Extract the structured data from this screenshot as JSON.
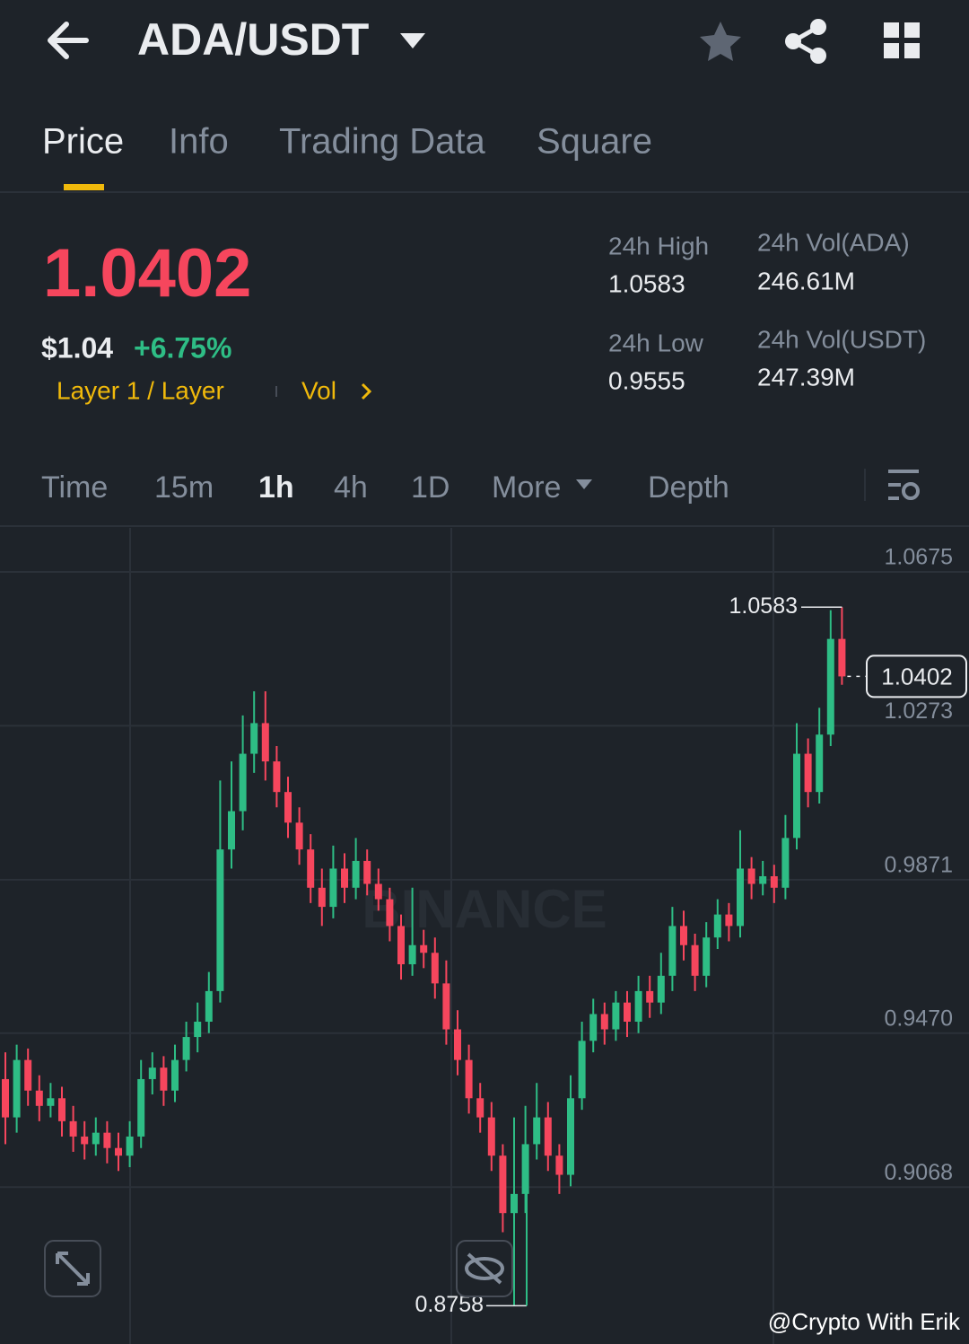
{
  "header": {
    "pair": "ADA/USDT"
  },
  "tabs": [
    "Price",
    "Info",
    "Trading Data",
    "Square"
  ],
  "ticker": {
    "price": "1.0402",
    "usd": "$1.04",
    "change": "+6.75%",
    "tag": "Layer 1 / Layer",
    "vol": "Vol"
  },
  "stats": [
    {
      "label": "24h High",
      "value": "1.0583"
    },
    {
      "label": "24h Vol(ADA)",
      "value": "246.61M"
    },
    {
      "label": "24h Low",
      "value": "0.9555"
    },
    {
      "label": "24h Vol(USDT)",
      "value": "247.39M"
    }
  ],
  "intervals": [
    "Time",
    "15m",
    "1h",
    "4h",
    "1D",
    "More",
    "Depth"
  ],
  "chart_data": {
    "type": "candlestick",
    "up_color": "#2ebd85",
    "down_color": "#f6465d",
    "ylim": [
      0.8658,
      1.079
    ],
    "yticks": [
      1.0675,
      1.0273,
      0.9871,
      {
        "value": 0.947,
        "label": "0.9470"
      },
      0.9068
    ],
    "grid": true,
    "open": [
      0.935,
      0.925,
      0.94,
      0.932,
      0.928,
      0.93,
      0.924,
      0.92,
      0.918,
      0.921,
      0.917,
      0.915,
      0.92,
      0.935,
      0.938,
      0.932,
      0.94,
      0.946,
      0.95,
      0.958,
      0.995,
      1.005,
      1.02,
      1.028,
      1.018,
      1.01,
      1.002,
      0.995,
      0.985,
      0.98,
      0.99,
      0.985,
      0.992,
      0.986,
      0.982,
      0.975,
      0.965,
      0.97,
      0.968,
      0.96,
      0.948,
      0.94,
      0.93,
      0.925,
      0.915,
      0.9,
      0.905,
      0.918,
      0.925,
      0.915,
      0.91,
      0.93,
      0.945,
      0.952,
      0.948,
      0.955,
      0.95,
      0.958,
      0.955,
      0.962,
      0.975,
      0.97,
      0.962,
      0.972,
      0.978,
      0.975,
      0.99,
      0.986,
      0.988,
      0.985,
      0.998,
      1.02,
      1.01,
      1.025,
      1.05
    ],
    "high": [
      0.942,
      0.944,
      0.943,
      0.936,
      0.934,
      0.933,
      0.928,
      0.924,
      0.925,
      0.924,
      0.921,
      0.924,
      0.94,
      0.942,
      0.941,
      0.944,
      0.95,
      0.955,
      0.963,
      1.013,
      1.018,
      1.03,
      1.0363,
      1.0363,
      1.022,
      1.014,
      1.006,
      0.999,
      0.99,
      0.996,
      0.994,
      0.998,
      0.995,
      0.99,
      0.985,
      0.978,
      0.985,
      0.974,
      0.972,
      0.966,
      0.953,
      0.944,
      0.934,
      0.929,
      0.918,
      0.925,
      0.928,
      0.934,
      0.929,
      0.918,
      0.936,
      0.95,
      0.956,
      0.955,
      0.958,
      0.958,
      0.962,
      0.962,
      0.968,
      0.98,
      0.979,
      0.973,
      0.976,
      0.982,
      0.981,
      1.0,
      0.993,
      0.992,
      0.991,
      1.004,
      1.028,
      1.024,
      1.032,
      1.0575,
      1.0583
    ],
    "low": [
      0.918,
      0.921,
      0.928,
      0.924,
      0.925,
      0.92,
      0.916,
      0.914,
      0.915,
      0.913,
      0.911,
      0.912,
      0.917,
      0.931,
      0.928,
      0.929,
      0.937,
      0.942,
      0.947,
      0.955,
      0.99,
      1.0,
      1.015,
      1.013,
      1.006,
      0.998,
      0.991,
      0.981,
      0.975,
      0.977,
      0.981,
      0.982,
      0.983,
      0.979,
      0.971,
      0.961,
      0.962,
      0.964,
      0.956,
      0.944,
      0.936,
      0.926,
      0.921,
      0.911,
      0.895,
      0.8758,
      0.9,
      0.914,
      0.911,
      0.905,
      0.907,
      0.927,
      0.942,
      0.944,
      0.945,
      0.946,
      0.947,
      0.951,
      0.952,
      0.958,
      0.966,
      0.958,
      0.959,
      0.969,
      0.971,
      0.972,
      0.982,
      0.983,
      0.981,
      0.982,
      0.995,
      1.006,
      1.007,
      1.022,
      1.038
    ],
    "close": [
      0.925,
      0.94,
      0.932,
      0.928,
      0.93,
      0.924,
      0.92,
      0.918,
      0.921,
      0.917,
      0.915,
      0.92,
      0.935,
      0.938,
      0.932,
      0.94,
      0.946,
      0.95,
      0.958,
      0.995,
      1.005,
      1.02,
      1.028,
      1.018,
      1.01,
      1.002,
      0.995,
      0.985,
      0.98,
      0.99,
      0.985,
      0.992,
      0.986,
      0.982,
      0.975,
      0.965,
      0.97,
      0.968,
      0.96,
      0.948,
      0.94,
      0.93,
      0.925,
      0.915,
      0.9,
      0.905,
      0.918,
      0.925,
      0.915,
      0.91,
      0.93,
      0.945,
      0.952,
      0.948,
      0.955,
      0.95,
      0.958,
      0.955,
      0.962,
      0.975,
      0.97,
      0.962,
      0.972,
      0.978,
      0.975,
      0.99,
      0.986,
      0.988,
      0.985,
      0.998,
      1.02,
      1.01,
      1.025,
      1.05,
      1.0402
    ]
  },
  "watermark": "BINANCE",
  "credit": "@Crypto With Erik"
}
